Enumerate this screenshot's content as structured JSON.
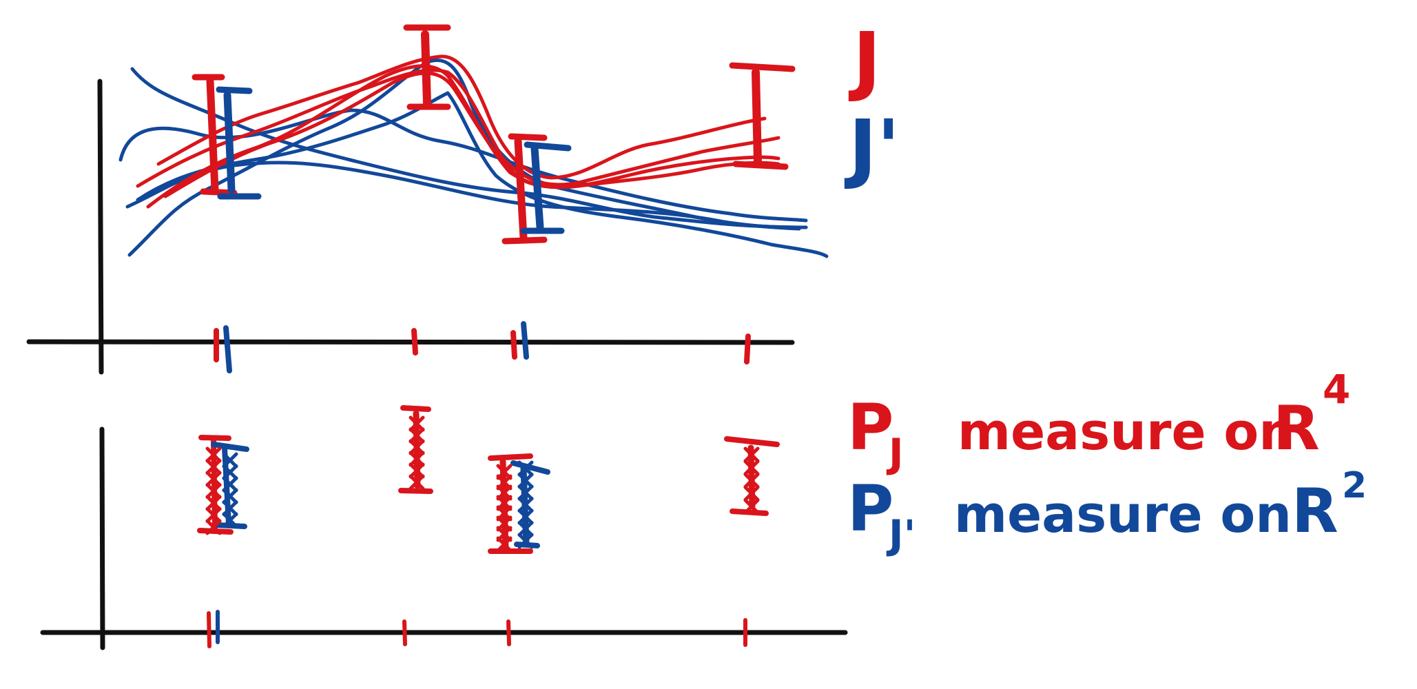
{
  "colors": {
    "ink_black": "#111111",
    "set_J": "#d9151b",
    "set_J_prime": "#12489a",
    "background": "#ffffff"
  },
  "legend_top": {
    "J_label": "J",
    "J_prime_label": "J'"
  },
  "legend_bottom": {
    "line_J": {
      "symbol": "P",
      "subscript": "J",
      "text": "measure on",
      "space": "R",
      "exponent": "4"
    },
    "line_J_prime": {
      "symbol": "P",
      "subscript": "J'",
      "text": "measure on",
      "space": "R",
      "exponent": "2"
    }
  },
  "icons": {
    "error_bar": "i-beam-glyph",
    "sample_point": "x-mark",
    "tick": "vertical-tick"
  }
}
